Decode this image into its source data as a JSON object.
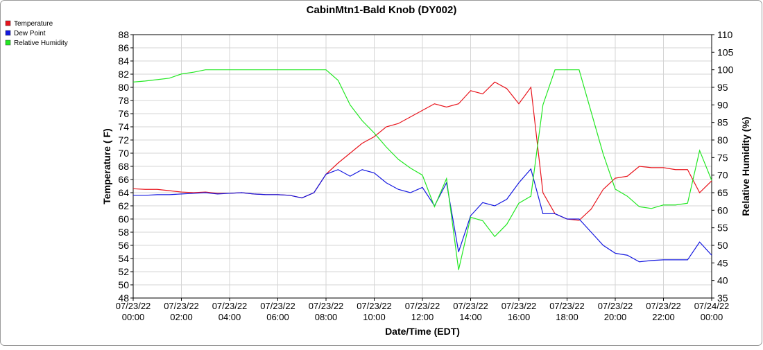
{
  "chart_data": {
    "type": "line",
    "title": "CabinMtn1-Bald Knob (DY002)",
    "x_label": "Date/Time (EDT)",
    "y_label": "Temperature ( F)",
    "y2_label": "Relative Humidity (%)",
    "grid": true,
    "legend_position": "top-left",
    "x": [
      "07/23/22 00:00",
      "07/23/22 00:30",
      "07/23/22 01:00",
      "07/23/22 01:30",
      "07/23/22 02:00",
      "07/23/22 02:30",
      "07/23/22 03:00",
      "07/23/22 03:30",
      "07/23/22 04:00",
      "07/23/22 04:30",
      "07/23/22 05:00",
      "07/23/22 05:30",
      "07/23/22 06:00",
      "07/23/22 06:30",
      "07/23/22 07:00",
      "07/23/22 07:30",
      "07/23/22 08:00",
      "07/23/22 08:30",
      "07/23/22 09:00",
      "07/23/22 09:30",
      "07/23/22 10:00",
      "07/23/22 10:30",
      "07/23/22 11:00",
      "07/23/22 11:30",
      "07/23/22 12:00",
      "07/23/22 12:30",
      "07/23/22 13:00",
      "07/23/22 13:30",
      "07/23/22 14:00",
      "07/23/22 14:30",
      "07/23/22 15:00",
      "07/23/22 15:30",
      "07/23/22 16:00",
      "07/23/22 16:30",
      "07/23/22 17:00",
      "07/23/22 17:30",
      "07/23/22 18:00",
      "07/23/22 18:30",
      "07/23/22 19:00",
      "07/23/22 19:30",
      "07/23/22 20:00",
      "07/23/22 20:30",
      "07/23/22 21:00",
      "07/23/22 21:30",
      "07/23/22 22:00",
      "07/23/22 22:30",
      "07/23/22 23:00",
      "07/23/22 23:30",
      "07/24/22 00:00"
    ],
    "xlim": [
      "07/23/22 00:00",
      "07/24/22 00:00"
    ],
    "xticks": [
      "07/23/22 00:00",
      "07/23/22 02:00",
      "07/23/22 04:00",
      "07/23/22 06:00",
      "07/23/22 08:00",
      "07/23/22 10:00",
      "07/23/22 12:00",
      "07/23/22 14:00",
      "07/23/22 16:00",
      "07/23/22 18:00",
      "07/23/22 20:00",
      "07/23/22 22:00",
      "07/24/22 00:00"
    ],
    "ylim": [
      48,
      88
    ],
    "yticks": [
      48,
      50,
      52,
      54,
      56,
      58,
      60,
      62,
      64,
      66,
      68,
      70,
      72,
      74,
      76,
      78,
      80,
      82,
      84,
      86,
      88
    ],
    "y2lim": [
      35,
      110
    ],
    "y2ticks": [
      35,
      40,
      45,
      50,
      55,
      60,
      65,
      70,
      75,
      80,
      85,
      90,
      95,
      100,
      105,
      110
    ],
    "series": [
      {
        "name": "Temperature",
        "color": "#e8141c",
        "values": [
          64.6,
          64.5,
          64.5,
          64.3,
          64.1,
          64.0,
          64.1,
          63.9,
          63.9,
          64.0,
          63.8,
          63.7,
          63.7,
          63.6,
          63.2,
          64.0,
          66.8,
          68.5,
          70.0,
          71.5,
          72.5,
          74.0,
          74.5,
          75.5,
          76.5,
          77.5,
          77.0,
          77.5,
          79.5,
          79.0,
          80.8,
          79.8,
          77.5,
          80.0,
          64.0,
          60.8,
          60.0,
          59.8,
          61.5,
          64.5,
          66.2,
          66.5,
          68.0,
          67.8,
          67.8,
          67.5,
          67.5,
          64.0,
          65.8
        ]
      },
      {
        "name": "Dew Point",
        "color": "#1418e0",
        "values": [
          63.6,
          63.6,
          63.7,
          63.7,
          63.8,
          63.9,
          64.0,
          63.8,
          63.9,
          64.0,
          63.8,
          63.7,
          63.7,
          63.6,
          63.2,
          64.0,
          66.8,
          67.5,
          66.5,
          67.5,
          67.0,
          65.5,
          64.5,
          64.0,
          64.8,
          62.0,
          65.5,
          55.0,
          60.5,
          62.5,
          62.0,
          63.0,
          65.5,
          67.6,
          60.8,
          60.8,
          60.0,
          60.0,
          58.0,
          56.0,
          54.8,
          54.5,
          53.5,
          53.7,
          53.8,
          53.8,
          53.8,
          56.5,
          54.5
        ]
      },
      {
        "name": "Relative Humidity",
        "color": "#22e822",
        "axis": "y2",
        "values": [
          96.5,
          96.8,
          97.2,
          97.6,
          98.8,
          99.3,
          100,
          100,
          100,
          100,
          100,
          100,
          100,
          100,
          100,
          100,
          100,
          97,
          90,
          85.5,
          82,
          78,
          74.5,
          72,
          70,
          61,
          69,
          43,
          58,
          57,
          52.5,
          56,
          62,
          64,
          90,
          100,
          100,
          100,
          88,
          76,
          66,
          64,
          61,
          60.5,
          61.5,
          61.5,
          62,
          77,
          68.5
        ]
      }
    ]
  }
}
